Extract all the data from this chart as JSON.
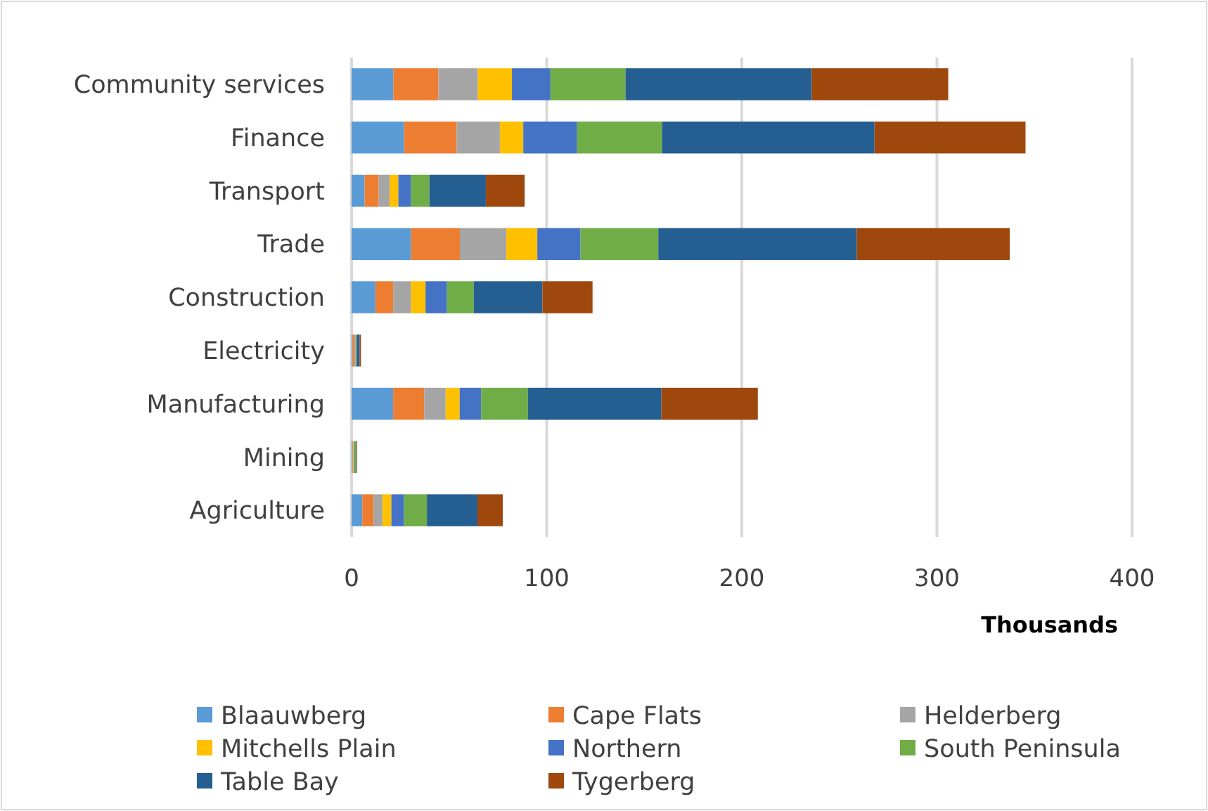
{
  "chart_data": {
    "type": "bar",
    "orientation": "horizontal",
    "stacked": true,
    "categories": [
      "Community services",
      "Finance",
      "Transport",
      "Trade",
      "Construction",
      "Electricity",
      "Manufacturing",
      "Mining",
      "Agriculture"
    ],
    "xlabel": "Thousands",
    "xlim": [
      0,
      400
    ],
    "xticks": [
      0,
      100,
      200,
      300,
      400
    ],
    "grid": "x",
    "legend": "bottom",
    "series": [
      {
        "name": "Blaauwberg",
        "color": "#5b9bd5",
        "values": [
          21.4,
          26.9,
          6.7,
          30.5,
          12.2,
          0.5,
          21.3,
          0.3,
          5.5
        ]
      },
      {
        "name": "Cape Flats",
        "color": "#ed7d31",
        "values": [
          23.1,
          26.9,
          7.2,
          25,
          9.1,
          1,
          15.9,
          0.3,
          5.8
        ]
      },
      {
        "name": "Helderberg",
        "color": "#a5a5a5",
        "values": [
          20.2,
          22.2,
          5.6,
          23.8,
          9.2,
          0.3,
          11,
          0.3,
          4.5
        ]
      },
      {
        "name": "Mitchells Plain",
        "color": "#ffc000",
        "values": [
          17.5,
          12,
          4.5,
          15.9,
          7.4,
          0.2,
          7.2,
          0.2,
          4.6
        ]
      },
      {
        "name": "Northern",
        "color": "#4472c4",
        "values": [
          19.7,
          27.6,
          6.5,
          22.1,
          11,
          0.3,
          11,
          0.3,
          6.5
        ]
      },
      {
        "name": "South Peninsula",
        "color": "#70ad47",
        "values": [
          38.5,
          43.5,
          9.4,
          39.9,
          13.7,
          0.3,
          24,
          1,
          11.7
        ]
      },
      {
        "name": "Table Bay",
        "color": "#255e91",
        "values": [
          95.4,
          108.9,
          28.9,
          101.7,
          35.2,
          1.5,
          68.4,
          0.3,
          25.9
        ]
      },
      {
        "name": "Tygerberg",
        "color": "#9e480e",
        "values": [
          70,
          77.4,
          19.9,
          78.4,
          25.7,
          0.7,
          49.4,
          0.2,
          13
        ]
      }
    ]
  }
}
